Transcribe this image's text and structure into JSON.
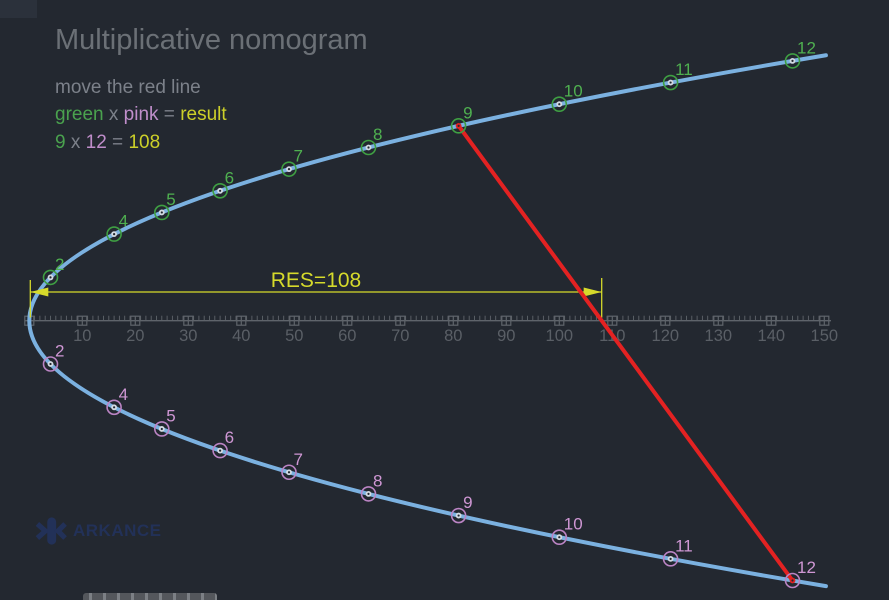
{
  "header": {
    "title": "Multiplicative nomogram",
    "subtitle": "move the red line"
  },
  "equation_legend": {
    "parts": [
      {
        "t": "green",
        "c": "green"
      },
      {
        "t": " x ",
        "c": "gray"
      },
      {
        "t": "pink",
        "c": "pink"
      },
      {
        "t": " = ",
        "c": "gray"
      },
      {
        "t": "result",
        "c": "yellow"
      }
    ]
  },
  "equation_example": {
    "parts": [
      {
        "t": "9",
        "c": "green"
      },
      {
        "t": " x ",
        "c": "gray"
      },
      {
        "t": "12",
        "c": "pink"
      },
      {
        "t": " = ",
        "c": "gray"
      },
      {
        "t": "108",
        "c": "yellow"
      }
    ]
  },
  "nomogram": {
    "point_values": [
      2,
      4,
      5,
      6,
      7,
      8,
      9,
      10,
      11,
      12
    ],
    "red_line": {
      "top_value": 9,
      "bottom_value": 12,
      "result": 108
    },
    "dimension_label": "RES=108",
    "ruler": {
      "min": 0,
      "max": 150,
      "major_step": 10,
      "minor_step": 1,
      "labels": [
        "10",
        "20",
        "30",
        "40",
        "50",
        "60",
        "70",
        "80",
        "90",
        "100",
        "110",
        "120",
        "130",
        "140",
        "150"
      ]
    }
  },
  "logo": {
    "text": "ARKANCE"
  },
  "colors": {
    "background": "#232830",
    "corner": "#2b313b",
    "title": "#6b7076",
    "subtitle": "#7c818a",
    "green": "#4aa24e",
    "pink": "#c08ecb",
    "yellow": "#ccd029",
    "gray": "#7c818a",
    "curve": "#7bb1e0",
    "red": "#e32222",
    "ruler": "#5f646b",
    "ruler_text": "#5a5f66",
    "marker_dot": "#d3dae2",
    "top_ring": "#3f9f43",
    "top_label": "#4fb050",
    "bottom_ring": "#bb84c4",
    "bottom_label": "#cf97d4",
    "dim": "#d6da2b",
    "logo": "#223158",
    "bottom_bar": "#54575c"
  }
}
